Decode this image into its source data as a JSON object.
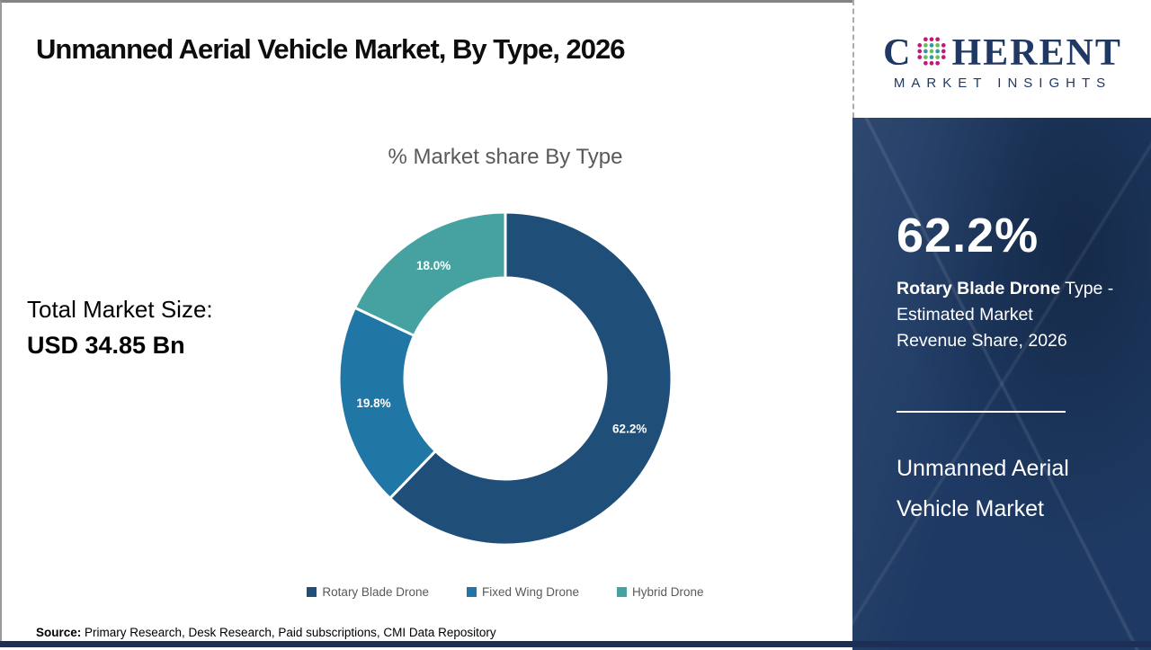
{
  "title": "Unmanned Aerial Vehicle Market, By Type, 2026",
  "logo": {
    "text_c": "C",
    "text_rest": "HERENT",
    "subtitle": "MARKET INSIGHTS",
    "navy": "#1F3864",
    "globe_colors": {
      "outer": "#C2187C",
      "inner_a": "#2E9CA6",
      "inner_b": "#6CBE4E"
    }
  },
  "chart_data": {
    "type": "pie",
    "donut": true,
    "title": "% Market share By Type",
    "categories": [
      "Rotary Blade Drone",
      "Fixed Wing Drone",
      "Hybrid Drone"
    ],
    "values": [
      62.2,
      19.8,
      18.0
    ],
    "labels": [
      "62.2%",
      "19.8%",
      "18.0%"
    ],
    "colors": [
      "#1F4E79",
      "#2076A5",
      "#45A2A0"
    ],
    "start_angle_deg": 0,
    "direction": "clockwise",
    "legend_position": "bottom"
  },
  "total_market": {
    "label": "Total Market Size:",
    "value": "USD 34.85 Bn"
  },
  "sidebar": {
    "bg_color": "#1E3A64",
    "stat_value": "62.2%",
    "desc_bold": "Rotary Blade Drone",
    "desc_line1_rest": " Type -",
    "desc_line2": "Estimated Market",
    "desc_line3": "Revenue Share, 2026",
    "name_line1": "Unmanned Aerial",
    "name_line2": "Vehicle Market"
  },
  "source": {
    "label": "Source:",
    "text": " Primary Research, Desk Research, Paid subscriptions, CMI Data Repository"
  }
}
